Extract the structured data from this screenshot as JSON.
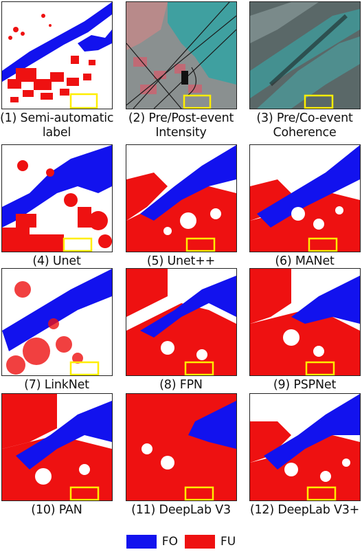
{
  "panels": [
    {
      "caption": [
        "(1) Semi-automatic",
        "label"
      ],
      "kind": "label"
    },
    {
      "caption": [
        "(2) Pre/Post-event",
        "Intensity"
      ],
      "kind": "intensity"
    },
    {
      "caption": [
        "(3) Pre/Co-event",
        "Coherence"
      ],
      "kind": "coherence"
    },
    {
      "caption": [
        "(4) Unet"
      ],
      "kind": "pred"
    },
    {
      "caption": [
        "(5) Unet++"
      ],
      "kind": "pred"
    },
    {
      "caption": [
        "(6) MANet"
      ],
      "kind": "pred"
    },
    {
      "caption": [
        "(7) LinkNet"
      ],
      "kind": "pred"
    },
    {
      "caption": [
        "(8) FPN"
      ],
      "kind": "pred"
    },
    {
      "caption": [
        "(9) PSPNet"
      ],
      "kind": "pred"
    },
    {
      "caption": [
        "(10) PAN"
      ],
      "kind": "pred"
    },
    {
      "caption": [
        "(11) DeepLab V3"
      ],
      "kind": "pred"
    },
    {
      "caption": [
        "(12) DeepLab V3+"
      ],
      "kind": "pred"
    }
  ],
  "legend": [
    {
      "label": "FO",
      "color": "#1212ee"
    },
    {
      "label": "FU",
      "color": "#ee1111"
    }
  ],
  "colors": {
    "blue": "#1212ee",
    "red": "#ee1111",
    "highlight": "#ffee00"
  }
}
